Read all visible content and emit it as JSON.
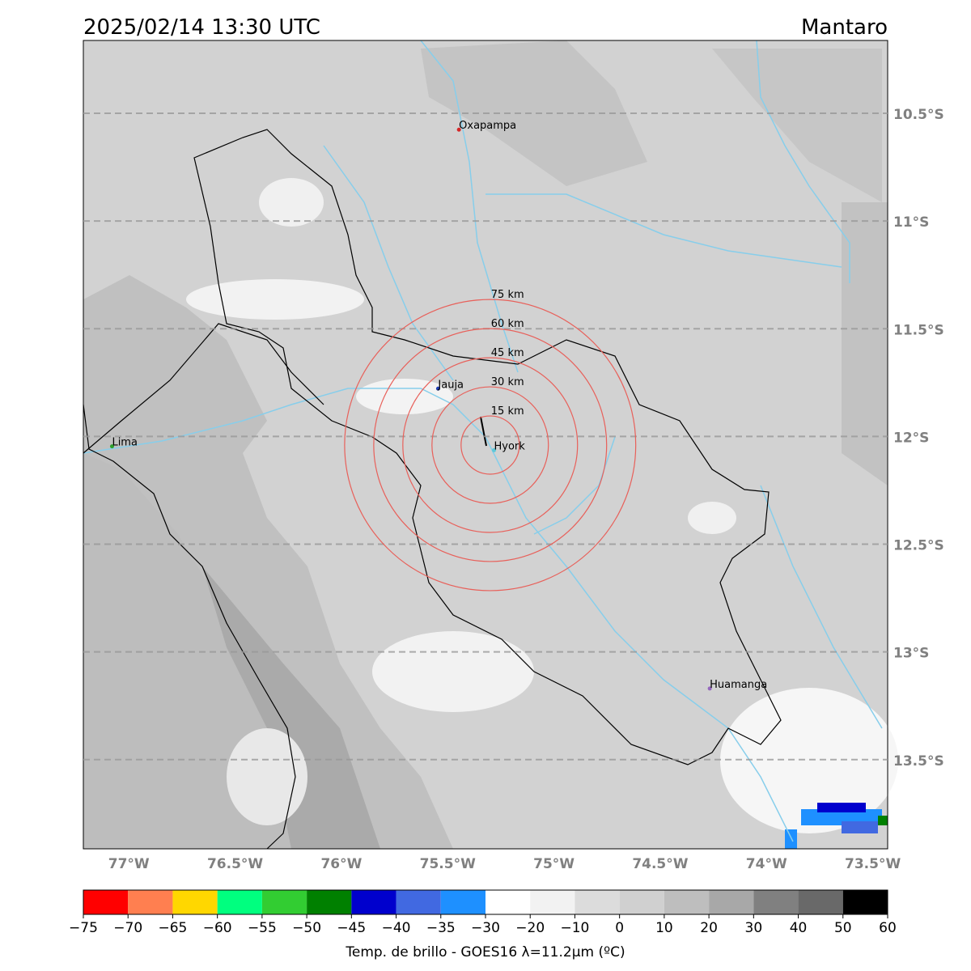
{
  "header": {
    "title": "2025/02/14 13:30 UTC",
    "region": "Mantaro"
  },
  "map": {
    "lonlim": [
      -77.214,
      -73.43
    ],
    "latlim": [
      -10.162,
      -13.914
    ],
    "lon_ticks": [
      {
        "value": -77,
        "label": "77°W"
      },
      {
        "value": -76.5,
        "label": "76.5°W"
      },
      {
        "value": -76,
        "label": "76°W"
      },
      {
        "value": -75.5,
        "label": "75.5°W"
      },
      {
        "value": -75,
        "label": "75°W"
      },
      {
        "value": -74.5,
        "label": "74.5°W"
      },
      {
        "value": -74,
        "label": "74°W"
      },
      {
        "value": -73.5,
        "label": "73.5°W"
      }
    ],
    "lat_ticks": [
      {
        "value": -10.5,
        "label": "10.5°S"
      },
      {
        "value": -11,
        "label": "11°S"
      },
      {
        "value": -11.5,
        "label": "11.5°S"
      },
      {
        "value": -12,
        "label": "12°S"
      },
      {
        "value": -12.5,
        "label": "12.5°S"
      },
      {
        "value": -13,
        "label": "13°S"
      },
      {
        "value": -13.5,
        "label": "13.5°S"
      }
    ],
    "cities": [
      {
        "name": "Oxapampa",
        "lon": -75.447,
        "lat": -10.576,
        "color": "#d62728"
      },
      {
        "name": "Jauja",
        "lon": -75.545,
        "lat": -11.778,
        "color": "#1f3fb4"
      },
      {
        "name": "Hyork",
        "lon": -75.282,
        "lat": -12.064,
        "color": "#5fc8d8"
      },
      {
        "name": "Lima",
        "lon": -77.079,
        "lat": -12.046,
        "color": "#2ca02c"
      },
      {
        "name": "Huamanga",
        "lon": -74.267,
        "lat": -13.17,
        "color": "#9467bd"
      }
    ],
    "rings": {
      "center_lon": -75.3,
      "center_lat": -12.04,
      "color": "#e8605a",
      "items": [
        {
          "km": 15,
          "label": "15 km"
        },
        {
          "km": 30,
          "label": "30 km"
        },
        {
          "km": 45,
          "label": "45 km"
        },
        {
          "km": 60,
          "label": "60 km"
        },
        {
          "km": 75,
          "label": "75 km"
        }
      ]
    }
  },
  "colorbar": {
    "label": "Temp. de brillo - GOES16 λ=11.2μm (ºC)",
    "ticks": [
      {
        "value": -75,
        "label": "−75"
      },
      {
        "value": -70,
        "label": "−70"
      },
      {
        "value": -65,
        "label": "−65"
      },
      {
        "value": -60,
        "label": "−60"
      },
      {
        "value": -55,
        "label": "−55"
      },
      {
        "value": -50,
        "label": "−50"
      },
      {
        "value": -45,
        "label": "−45"
      },
      {
        "value": -40,
        "label": "−40"
      },
      {
        "value": -35,
        "label": "−35"
      },
      {
        "value": -30,
        "label": "−30"
      },
      {
        "value": -20,
        "label": "−20"
      },
      {
        "value": -10,
        "label": "−10"
      },
      0,
      10,
      20,
      30,
      40,
      50,
      60
    ],
    "colors": [
      "#ff0000",
      "#ff7f50",
      "#ffd700",
      "#00ff7f",
      "#32cd32",
      "#008000",
      "#0000cd",
      "#4169e1",
      "#1e90ff",
      "#ffffff",
      "#f2f2f2",
      "#dcdcdc",
      "#d0d0d0",
      "#bebebe",
      "#a8a8a8",
      "#808080",
      "#696969",
      "#000000"
    ]
  }
}
